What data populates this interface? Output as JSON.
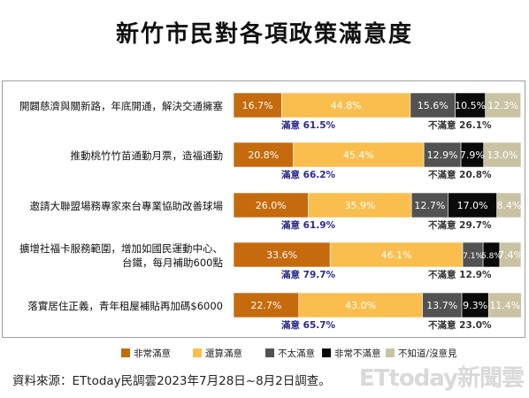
{
  "title": "新竹市民對各項政策滿意度",
  "source": "資料來源：ETtoday民調雲2023年7月28日~8月2日調查。",
  "watermark": "ETtoday新聞雲",
  "colors": {
    "very_satisfied": "#c56b0e",
    "fairly_satisfied": "#f9be4d",
    "not_very_satisfied": "#525252",
    "very_dissatisfied": "#0a0a0a",
    "no_opinion": "#c9c3a4",
    "satisfied_label": "#2c2a8c",
    "dissatisfied_label": "#333333"
  },
  "chart_data": {
    "type": "bar",
    "orientation": "horizontal-stacked-100",
    "categories": [
      [
        "開闢慈濟與關新路，年底開通，解決交通擁塞"
      ],
      [
        "推動桃竹竹苗通勤月票，造福通勤"
      ],
      [
        "邀請大聯盟場務專家來台專業協助改善球場"
      ],
      [
        "擴增社福卡服務範圍，增加如國民運動中心、",
        "台鐵，每月補助600點"
      ],
      [
        "落實居住正義，青年租屋補貼再加碼$6000"
      ]
    ],
    "series": [
      {
        "name": "非常滿意",
        "color_key": "very_satisfied",
        "values": [
          16.7,
          20.8,
          26.0,
          33.6,
          22.7
        ],
        "labels": [
          "16.7%",
          "20.8%",
          "26.0%",
          "33.6%",
          "22.7%"
        ]
      },
      {
        "name": "還算滿意",
        "color_key": "fairly_satisfied",
        "values": [
          44.8,
          45.4,
          35.9,
          46.1,
          43.0
        ],
        "labels": [
          "44.8%",
          "45.4%",
          "35.9%",
          "46.1%",
          "43.0%"
        ]
      },
      {
        "name": "不太滿意",
        "color_key": "not_very_satisfied",
        "values": [
          15.6,
          12.9,
          12.7,
          7.1,
          13.7
        ],
        "labels": [
          "15.6%",
          "12.9%",
          "12.7%",
          "7.1%",
          "13.7%"
        ]
      },
      {
        "name": "非常不滿意",
        "color_key": "very_dissatisfied",
        "values": [
          10.5,
          7.9,
          17.0,
          5.8,
          9.3
        ],
        "labels": [
          "10.5%",
          "7.9%",
          "17.0%",
          "5.8%",
          "9.3%"
        ]
      },
      {
        "name": "不知道/沒意見",
        "color_key": "no_opinion",
        "values": [
          12.3,
          13.0,
          8.4,
          7.4,
          11.4
        ],
        "labels": [
          "12.3%",
          "13.0%",
          "8.4%",
          "7.4%",
          "11.4%"
        ]
      }
    ],
    "satisfied_totals": [
      "滿意 61.5%",
      "滿意 66.2%",
      "滿意 61.9%",
      "滿意 79.7%",
      "滿意 65.7%"
    ],
    "dissatisfied_totals": [
      "不滿意 26.1%",
      "不滿意 20.8%",
      "不滿意 29.7%",
      "不滿意 12.9%",
      "不滿意 23.0%"
    ],
    "xlim": [
      0,
      100
    ],
    "legend_position": "bottom"
  }
}
